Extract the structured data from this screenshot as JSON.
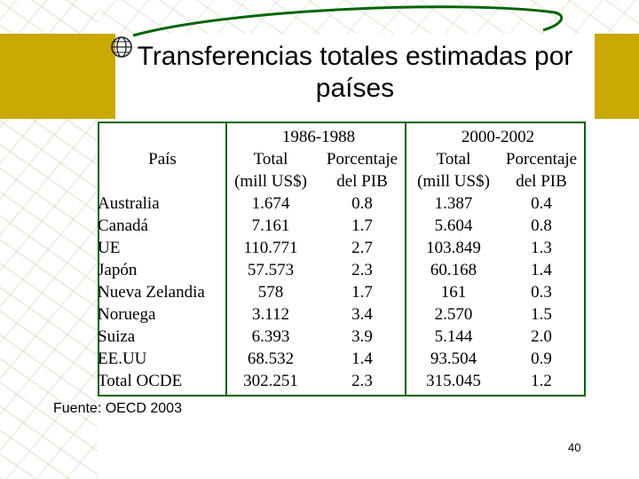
{
  "slide": {
    "title": "Transferencias totales estimadas por países",
    "source": "Fuente: OECD 2003",
    "page_number": "40",
    "colors": {
      "band": "#c9a800",
      "rule": "#006400",
      "swoosh": "#006400"
    }
  },
  "table": {
    "header": {
      "pais": "País",
      "period1": "1986-1988",
      "period2": "2000-2002",
      "total": "Total",
      "porcentaje": "Porcentaje",
      "mill": "(mill US$)",
      "pib": "del PIB"
    },
    "rows": [
      {
        "country": "Australia",
        "t1": "1.674",
        "p1": "0.8",
        "t2": "1.387",
        "p2": "0.4"
      },
      {
        "country": "Canadá",
        "t1": "7.161",
        "p1": "1.7",
        "t2": "5.604",
        "p2": "0.8"
      },
      {
        "country": "UE",
        "t1": "110.771",
        "p1": "2.7",
        "t2": "103.849",
        "p2": "1.3"
      },
      {
        "country": "Japón",
        "t1": "57.573",
        "p1": "2.3",
        "t2": "60.168",
        "p2": "1.4"
      },
      {
        "country": "Nueva Zelandia",
        "t1": "578",
        "p1": "1.7",
        "t2": "161",
        "p2": "0.3"
      },
      {
        "country": "Noruega",
        "t1": "3.112",
        "p1": "3.4",
        "t2": "2.570",
        "p2": "1.5"
      },
      {
        "country": "Suiza",
        "t1": "6.393",
        "p1": "3.9",
        "t2": "5.144",
        "p2": "2.0"
      },
      {
        "country": "EE.UU",
        "t1": "68.532",
        "p1": "1.4",
        "t2": "93.504",
        "p2": "0.9"
      },
      {
        "country": "Total OCDE",
        "t1": "302.251",
        "p1": "2.3",
        "t2": "315.045",
        "p2": "1.2"
      }
    ]
  }
}
